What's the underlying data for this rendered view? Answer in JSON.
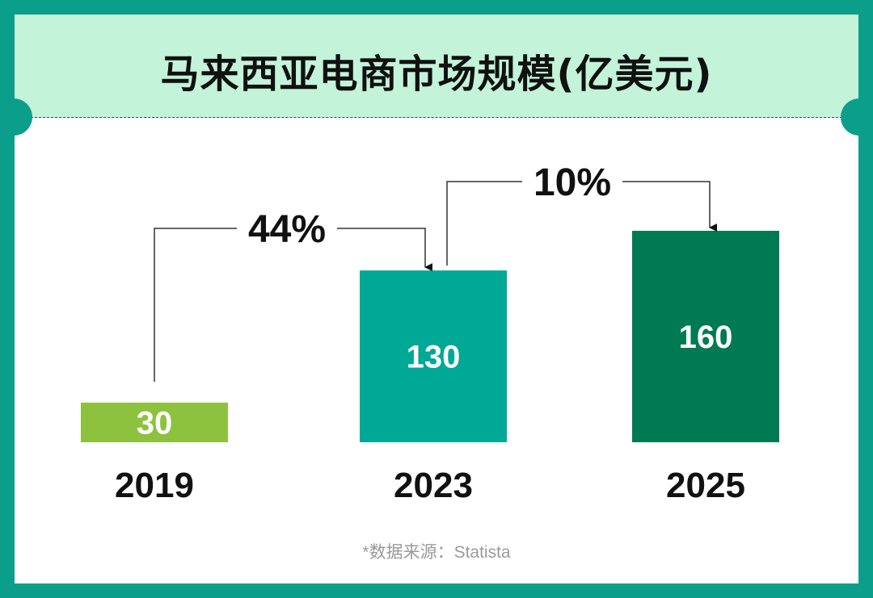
{
  "title": "马来西亚电商市场规模(亿美元)",
  "source": "*数据来源：Statista",
  "colors": {
    "frame": "#0b9f8b",
    "title_band": "#c3f3d9",
    "bar_2019": "#8dc23f",
    "bar_2023": "#00a896",
    "bar_2025": "#007a52"
  },
  "chart_data": {
    "type": "bar",
    "categories": [
      "2019",
      "2023",
      "2025"
    ],
    "values": [
      30,
      130,
      160
    ],
    "value_labels": [
      "30",
      "130",
      "160"
    ],
    "growth_annotations": [
      {
        "from": "2019",
        "to": "2023",
        "label": "44%"
      },
      {
        "from": "2023",
        "to": "2025",
        "label": "10%"
      }
    ]
  }
}
